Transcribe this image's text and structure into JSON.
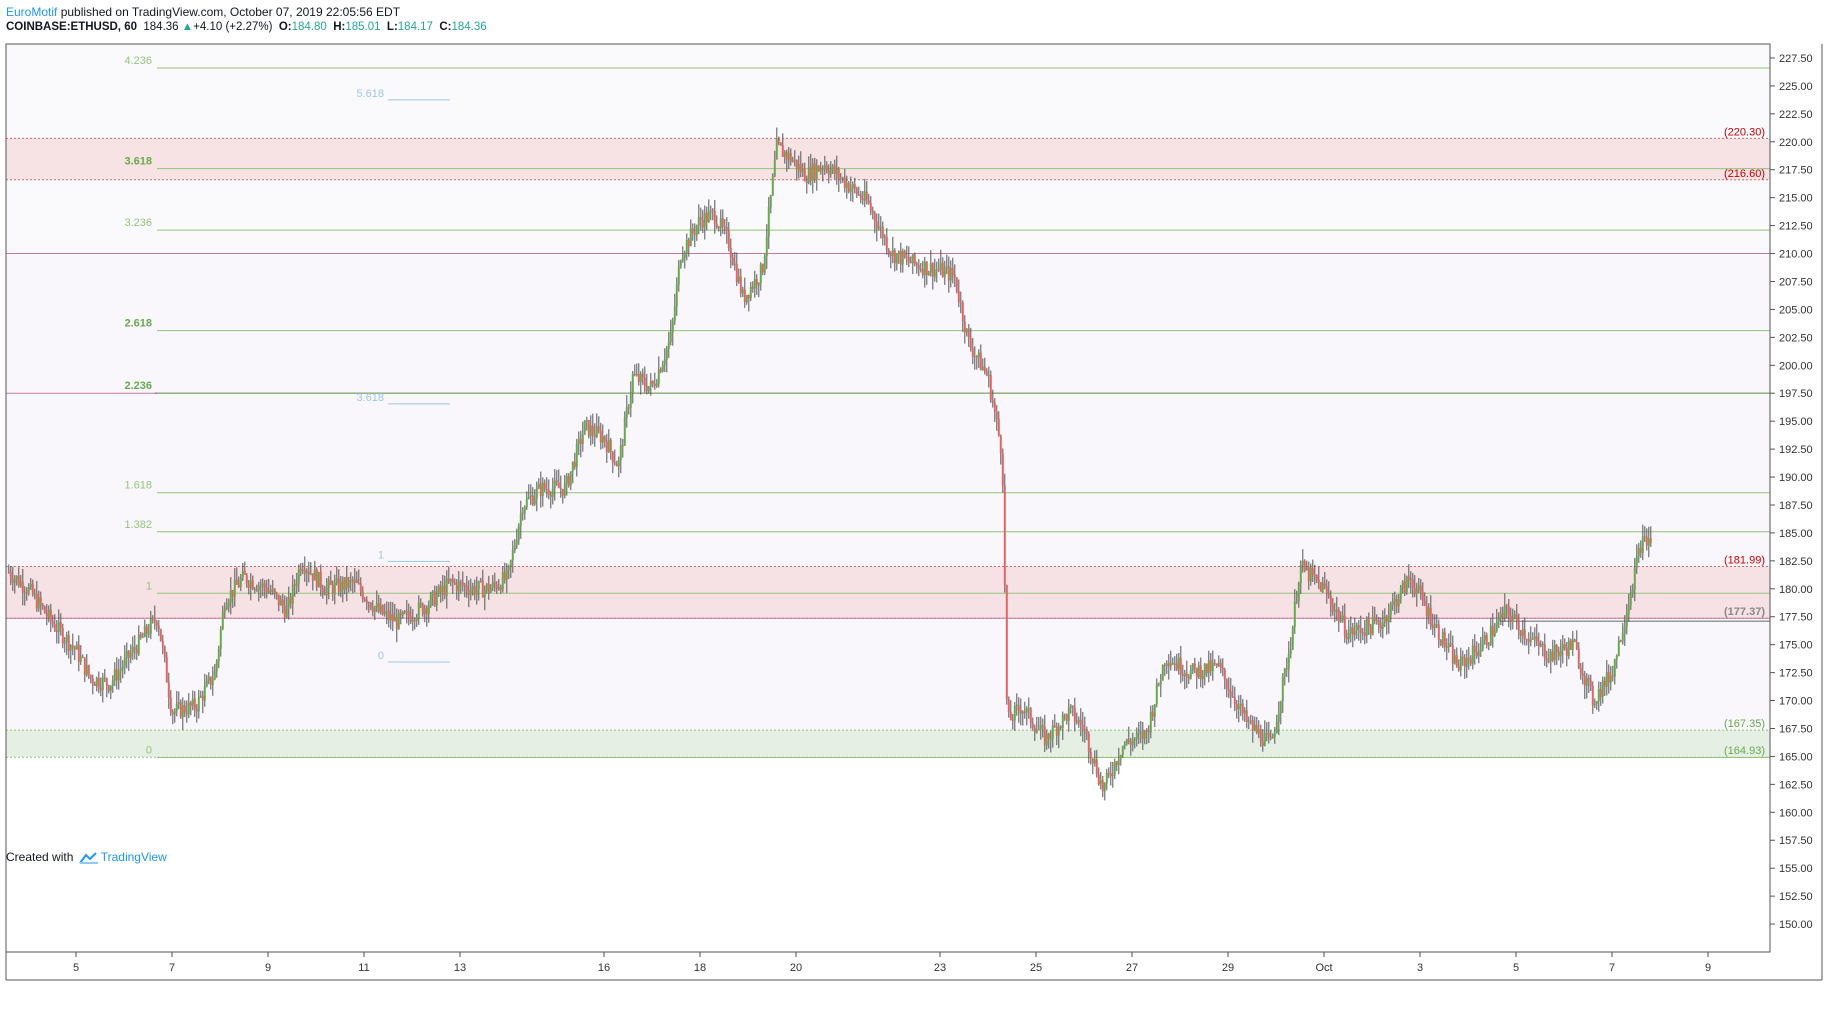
{
  "header": {
    "author": "EuroMotif",
    "published_text": " published on TradingView.com, October 07, 2019 22:05:56 EDT",
    "symbol": "COINBASE:ETHUSD, 60",
    "last": "184.36",
    "change": "+4.10 (+2.27%)",
    "o_label": "O:",
    "o_value": "184.80",
    "h_label": "H:",
    "h_value": "185.01",
    "l_label": "L:",
    "l_value": "184.17",
    "c_label": "C:",
    "c_value": "184.36"
  },
  "footer": {
    "created_with": "Created with",
    "brand": "TradingView"
  },
  "colors": {
    "up": "#6aa84f",
    "down": "#e06666",
    "wick": "#555555",
    "fib": "#93c47d",
    "fib_light": "#9fc5e8",
    "zone_red": "#f4cccc",
    "zone_green": "#d9ead3",
    "magenta": "#c27ba0"
  },
  "chart_data": {
    "type": "candlestick",
    "title": "",
    "xlabel": "",
    "ylabel": "",
    "ylim": [
      147.5,
      228.75
    ],
    "y_ticks": [
      "150.00",
      "152.50",
      "155.00",
      "157.50",
      "160.00",
      "162.50",
      "165.00",
      "167.50",
      "170.00",
      "172.50",
      "175.00",
      "177.50",
      "180.00",
      "182.50",
      "185.00",
      "187.50",
      "190.00",
      "192.50",
      "195.00",
      "197.50",
      "200.00",
      "202.50",
      "205.00",
      "207.50",
      "210.00",
      "212.50",
      "215.00",
      "217.50",
      "220.00",
      "222.50",
      "225.00",
      "227.50"
    ],
    "x_ticks": [
      {
        "label": "5",
        "day": 5
      },
      {
        "label": "7",
        "day": 7
      },
      {
        "label": "9",
        "day": 9
      },
      {
        "label": "11",
        "day": 11
      },
      {
        "label": "13",
        "day": 13
      },
      {
        "label": "16",
        "day": 16
      },
      {
        "label": "18",
        "day": 18
      },
      {
        "label": "20",
        "day": 20
      },
      {
        "label": "23",
        "day": 23
      },
      {
        "label": "25",
        "day": 25
      },
      {
        "label": "27",
        "day": 27
      },
      {
        "label": "29",
        "day": 29
      },
      {
        "label": "Oct",
        "day": 31
      },
      {
        "label": "3",
        "day": 33
      },
      {
        "label": "5",
        "day": 35
      },
      {
        "label": "7",
        "day": 37
      },
      {
        "label": "9",
        "day": 39
      }
    ],
    "price_path": [
      [
        3.6,
        181.5
      ],
      [
        4.0,
        180.0
      ],
      [
        4.5,
        177.0
      ],
      [
        5.0,
        174.5
      ],
      [
        5.3,
        172.0
      ],
      [
        5.7,
        171.5
      ],
      [
        6.2,
        174.5
      ],
      [
        6.7,
        177.5
      ],
      [
        7.0,
        169.0
      ],
      [
        7.5,
        169.5
      ],
      [
        7.9,
        172.5
      ],
      [
        8.1,
        179.0
      ],
      [
        8.5,
        181.0
      ],
      [
        9.0,
        180.0
      ],
      [
        9.4,
        178.0
      ],
      [
        9.7,
        182.5
      ],
      [
        10.2,
        180.0
      ],
      [
        10.8,
        180.5
      ],
      [
        11.3,
        178.0
      ],
      [
        11.7,
        177.0
      ],
      [
        12.3,
        178.5
      ],
      [
        12.8,
        180.5
      ],
      [
        13.3,
        180.0
      ],
      [
        13.6,
        180.0
      ],
      [
        14.0,
        181.0
      ],
      [
        14.3,
        187.5
      ],
      [
        14.7,
        189.0
      ],
      [
        15.2,
        189.0
      ],
      [
        15.6,
        194.5
      ],
      [
        16.0,
        193.5
      ],
      [
        16.3,
        191.0
      ],
      [
        16.6,
        199.0
      ],
      [
        17.0,
        198.0
      ],
      [
        17.4,
        202.5
      ],
      [
        17.6,
        210.0
      ],
      [
        18.0,
        213.0
      ],
      [
        18.3,
        213.5
      ],
      [
        18.6,
        211.0
      ],
      [
        18.9,
        206.0
      ],
      [
        19.3,
        208.5
      ],
      [
        19.6,
        219.5
      ],
      [
        19.9,
        218.5
      ],
      [
        20.2,
        217.0
      ],
      [
        20.6,
        218.0
      ],
      [
        21.0,
        216.5
      ],
      [
        21.5,
        214.5
      ],
      [
        22.0,
        210.0
      ],
      [
        22.5,
        209.0
      ],
      [
        23.0,
        208.5
      ],
      [
        23.3,
        208.0
      ],
      [
        23.6,
        202.0
      ],
      [
        24.0,
        199.0
      ],
      [
        24.3,
        192.0
      ],
      [
        24.4,
        168.0
      ],
      [
        24.7,
        169.5
      ],
      [
        25.2,
        166.5
      ],
      [
        25.7,
        169.0
      ],
      [
        26.0,
        167.5
      ],
      [
        26.4,
        162.0
      ],
      [
        26.8,
        166.0
      ],
      [
        27.3,
        167.0
      ],
      [
        27.7,
        174.0
      ],
      [
        28.2,
        172.5
      ],
      [
        28.8,
        173.0
      ],
      [
        29.4,
        168.0
      ],
      [
        29.9,
        166.0
      ],
      [
        30.3,
        175.0
      ],
      [
        30.5,
        182.0
      ],
      [
        31.0,
        180.0
      ],
      [
        31.5,
        176.0
      ],
      [
        32.2,
        177.0
      ],
      [
        32.8,
        181.0
      ],
      [
        33.4,
        176.0
      ],
      [
        33.8,
        173.0
      ],
      [
        34.3,
        175.0
      ],
      [
        34.8,
        178.0
      ],
      [
        35.3,
        175.5
      ],
      [
        35.7,
        174.0
      ],
      [
        36.2,
        175.0
      ],
      [
        36.6,
        170.0
      ],
      [
        37.0,
        172.5
      ],
      [
        37.3,
        178.0
      ],
      [
        37.6,
        184.0
      ],
      [
        37.85,
        184.5
      ]
    ],
    "horizontal_levels": [
      {
        "label": "4.236",
        "price": 226.6,
        "style": "fib"
      },
      {
        "label": "3.618",
        "price": 217.6,
        "style": "fib",
        "bold": true
      },
      {
        "label": "3.236",
        "price": 212.1,
        "style": "fib"
      },
      {
        "label": "2.618",
        "price": 203.1,
        "style": "fib",
        "bold": true
      },
      {
        "label": "2.236",
        "price": 197.5,
        "style": "fib",
        "bold": true
      },
      {
        "label": "1.618",
        "price": 188.6,
        "style": "fib"
      },
      {
        "label": "1.382",
        "price": 185.1,
        "style": "fib"
      },
      {
        "label": "1",
        "price": 179.6,
        "style": "fib"
      },
      {
        "label": "0",
        "price": 164.9,
        "style": "fib"
      }
    ],
    "secondary_fib": [
      {
        "label": "5.618",
        "price": 224.2
      },
      {
        "label": "3.618",
        "price": 197.0
      },
      {
        "label": "1",
        "price": 182.9
      },
      {
        "label": "0",
        "price": 173.9
      }
    ],
    "zones": [
      {
        "top": 220.3,
        "bottom": 216.6,
        "color": "red"
      },
      {
        "top": 181.99,
        "bottom": 177.37,
        "color": "red"
      },
      {
        "top": 167.35,
        "bottom": 164.93,
        "color": "green"
      }
    ],
    "magenta_levels": [
      210.0,
      197.5,
      177.37
    ],
    "price_labels": [
      {
        "text": "(220.30)",
        "price": 220.3,
        "color": "red"
      },
      {
        "text": "(216.60)",
        "price": 216.6,
        "color": "red"
      },
      {
        "text": "(181.99)",
        "price": 181.99,
        "color": "red"
      },
      {
        "text": "(177.37)",
        "price": 177.37,
        "color": "gray"
      },
      {
        "text": "(167.35)",
        "price": 167.35,
        "color": "green"
      },
      {
        "text": "(164.93)",
        "price": 164.93,
        "color": "green"
      }
    ]
  }
}
